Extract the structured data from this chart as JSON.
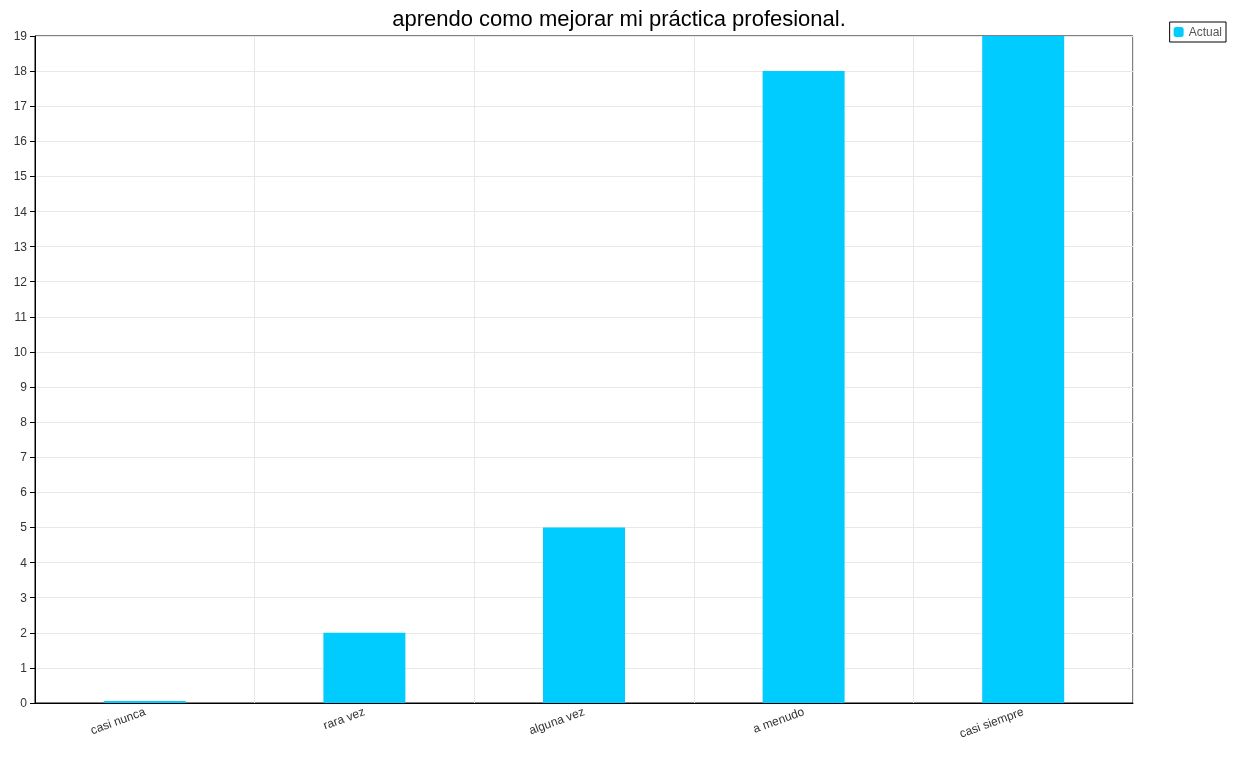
{
  "chart_data": {
    "type": "bar",
    "title": "aprendo como mejorar mi práctica profesional.",
    "categories": [
      "casi nunca",
      "rara vez",
      "alguna vez",
      "a menudo",
      "casi siempre"
    ],
    "series": [
      {
        "name": "Actual",
        "color": "#00ccff",
        "values": [
          0,
          2,
          5,
          18,
          19
        ]
      }
    ],
    "ylim": [
      0,
      19
    ],
    "yticks": [
      0,
      1,
      2,
      3,
      4,
      5,
      6,
      7,
      8,
      9,
      10,
      11,
      12,
      13,
      14,
      15,
      16,
      17,
      18,
      19
    ],
    "grid": true,
    "legend": "top right"
  }
}
